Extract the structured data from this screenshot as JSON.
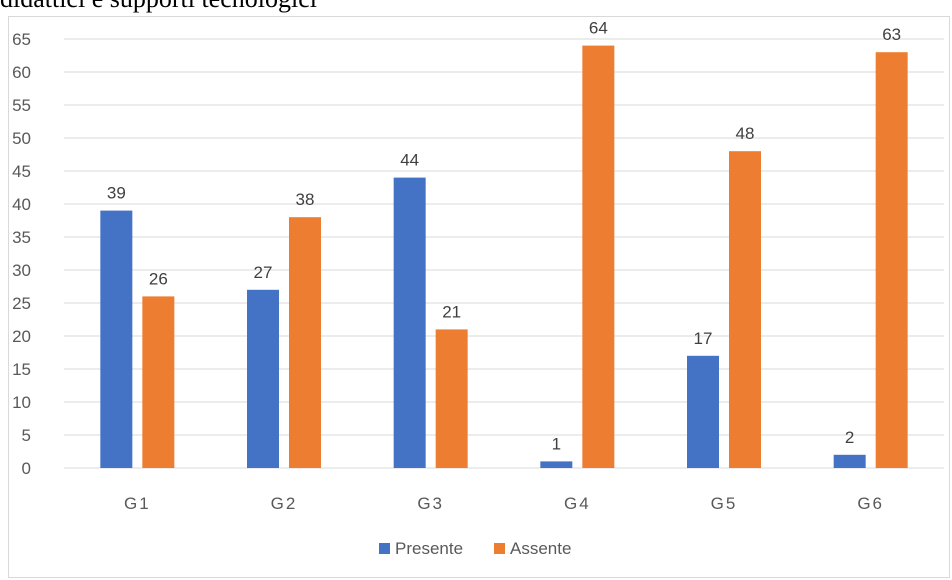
{
  "header": {
    "caption": "didattici e supporti tecnologici"
  },
  "chart_data": {
    "type": "bar",
    "title": "",
    "xlabel": "",
    "ylabel": "",
    "categories": [
      "G1",
      "G2",
      "G3",
      "G4",
      "G5",
      "G6"
    ],
    "series": [
      {
        "name": "Presente",
        "color": "#4472c4",
        "values": [
          39,
          27,
          44,
          1,
          17,
          2
        ]
      },
      {
        "name": "Assente",
        "color": "#ed7d31",
        "values": [
          26,
          38,
          21,
          64,
          48,
          63
        ]
      }
    ],
    "ylim": [
      0,
      65
    ],
    "yticks": [
      0,
      5,
      10,
      15,
      20,
      25,
      30,
      35,
      40,
      45,
      50,
      55,
      60,
      65
    ],
    "grid": true,
    "gridColor": "#d9d9d9",
    "legend": "bottom-center",
    "data_labels": true
  }
}
